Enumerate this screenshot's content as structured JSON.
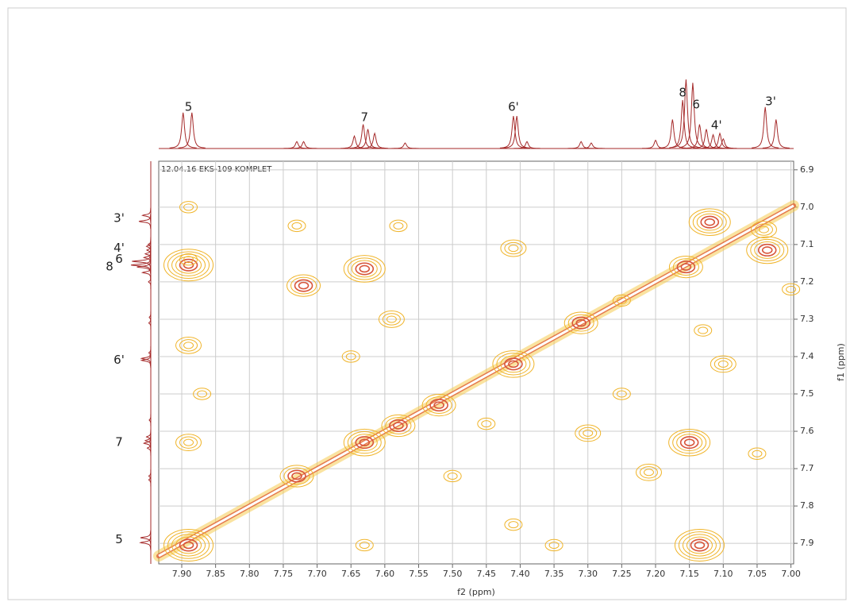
{
  "chart_data": {
    "type": "nmr2d",
    "title": "12.04.16 EKS-109 KOMPLET",
    "x_label": "f2 (ppm)",
    "y_label": "f1 (ppm)",
    "xlim": [
      7.934,
      6.996
    ],
    "xticks": [
      {
        "value": 7.9,
        "label": "7.90"
      },
      7.85,
      {
        "value": 7.8,
        "label": "7.80"
      },
      7.75,
      {
        "value": 7.7,
        "label": "7.70"
      },
      7.65,
      {
        "value": 7.6,
        "label": "7.60"
      },
      7.55,
      {
        "value": 7.5,
        "label": "7.50"
      },
      7.45,
      {
        "value": 7.4,
        "label": "7.40"
      },
      7.35,
      {
        "value": 7.3,
        "label": "7.30"
      },
      7.25,
      {
        "value": 7.2,
        "label": "7.20"
      },
      7.15,
      {
        "value": 7.1,
        "label": "7.10"
      },
      7.05,
      {
        "value": 7,
        "label": "7.00"
      }
    ],
    "ylim": [
      6.877,
      7.955
    ],
    "yticks": [
      6.9,
      {
        "value": 7,
        "label": "7.0"
      },
      7.1,
      7.2,
      7.3,
      7.4,
      7.5,
      7.6,
      7.7,
      7.8,
      7.9
    ],
    "grid": true,
    "spectrum_color": "#a52a2a",
    "spectrum": {
      "x": [
        7.898,
        7.885,
        7.73,
        7.72,
        7.645,
        7.632,
        7.625,
        7.615,
        7.57,
        7.41,
        7.405,
        7.39,
        7.31,
        7.295,
        7.2,
        7.175,
        7.16,
        7.155,
        7.145,
        7.135,
        7.125,
        7.115,
        7.105,
        7.1,
        7.038,
        7.022
      ],
      "values": [
        52,
        52,
        10,
        10,
        18,
        35,
        28,
        22,
        8,
        47,
        47,
        10,
        10,
        8,
        12,
        42,
        70,
        100,
        95,
        35,
        28,
        20,
        22,
        14,
        60,
        42
      ]
    },
    "peak_labels": [
      {
        "text": "5",
        "x": 7.89
      },
      {
        "text": "7",
        "x": 7.63
      },
      {
        "text": "6'",
        "x": 7.41
      },
      {
        "text": "8",
        "x": 7.16
      },
      {
        "text": "6",
        "x": 7.14
      },
      {
        "text": "4'",
        "x": 7.11
      },
      {
        "text": "3'",
        "x": 7.03
      }
    ],
    "cross_peaks": {
      "f2": [
        7.89,
        7.035,
        7.12,
        7.63,
        7.72,
        7.15,
        7.135,
        7.89,
        7.73,
        7.63,
        7.58,
        7.52,
        7.41,
        7.31,
        7.155,
        7.04,
        7.89,
        7.59,
        7.58,
        7.41,
        7.3,
        7.21,
        7.1,
        7.89,
        7.89,
        7.63,
        7.35,
        7.41,
        7.73,
        7.89,
        7.65,
        7.13,
        7.25,
        7.45,
        7.05,
        7.87,
        7.25,
        7.5,
        7.0
      ],
      "f1": [
        7.155,
        7.115,
        7.04,
        7.165,
        7.21,
        7.63,
        7.905,
        7.905,
        7.72,
        7.63,
        7.585,
        7.53,
        7.42,
        7.31,
        7.16,
        7.06,
        7.37,
        7.3,
        7.05,
        7.11,
        7.605,
        7.71,
        7.42,
        7.63,
        7.14,
        7.905,
        7.905,
        7.85,
        7.05,
        7.0,
        7.4,
        7.33,
        7.5,
        7.58,
        7.66,
        7.5,
        7.25,
        7.72,
        7.22
      ],
      "levels": [
        6,
        5,
        5,
        5,
        4,
        5,
        6,
        6,
        4,
        5,
        4,
        4,
        5,
        4,
        4,
        3,
        3,
        3,
        2,
        3,
        3,
        3,
        3,
        3,
        2,
        2,
        2,
        2,
        2,
        2,
        2,
        2,
        2,
        2,
        2,
        2,
        2,
        2,
        2
      ]
    }
  }
}
